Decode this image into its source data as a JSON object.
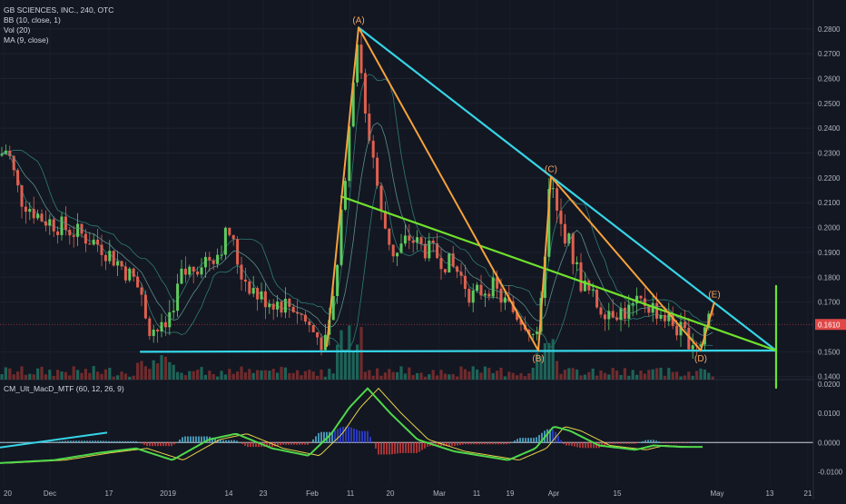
{
  "legend": {
    "symbol": "GB SCIENCES, INC., 240, OTC",
    "bb": "BB (10, close, 1)",
    "vol": "Vol (20)",
    "ma": "MA (9, close)"
  },
  "macd_legend": "CM_Ult_MacD_MTF (60, 12, 26, 9)",
  "colors": {
    "background": "#131722",
    "up": "#5ecb5e",
    "down": "#e0604f",
    "cyan": "#35d4e6",
    "orange": "#f7a23b",
    "green": "#6fe12c",
    "price_tag": "#e04848"
  },
  "chart_data": [
    {
      "type": "candlestick",
      "title": "",
      "price_axis": {
        "labels": [
          "0.2800",
          "0.2700",
          "0.2600",
          "0.2500",
          "0.2400",
          "0.2300",
          "0.2200",
          "0.2100",
          "0.2000",
          "0.1900",
          "0.1800",
          "0.1700",
          "0.1500",
          "0.1400"
        ],
        "values": [
          0.28,
          0.27,
          0.26,
          0.25,
          0.24,
          0.23,
          0.22,
          0.21,
          0.2,
          0.19,
          0.18,
          0.17,
          0.15,
          0.14
        ],
        "range": [
          0.1355,
          0.2865
        ]
      },
      "last_price_label": "0.1610",
      "last_price": 0.161,
      "x_axis": {
        "labels": [
          "20",
          "Dec",
          "17",
          "2019",
          "14",
          "23",
          "Feb",
          "11",
          "20",
          "Mar",
          "11",
          "19",
          "Apr",
          "15",
          "May",
          "13",
          "21"
        ],
        "positions": [
          4,
          55,
          120,
          185,
          252,
          290,
          344,
          386,
          430,
          484,
          525,
          562,
          610,
          680,
          790,
          848,
          890
        ]
      },
      "points": [
        {
          "label": "(A)",
          "x": 395,
          "price": 0.2805
        },
        {
          "label": "(B)",
          "x": 593,
          "price": 0.1505
        },
        {
          "label": "(C)",
          "x": 607,
          "price": 0.2205
        },
        {
          "label": "(D)",
          "x": 772,
          "price": 0.1505
        },
        {
          "label": "(E)",
          "x": 787,
          "price": 0.17
        }
      ],
      "trendlines": [
        {
          "name": "upper-resistance",
          "color": "cyan",
          "from": {
            "x": 395,
            "price": 0.2805
          },
          "to": {
            "x": 855,
            "price": 0.1505
          }
        },
        {
          "name": "base-support",
          "color": "cyan",
          "from": {
            "x": 155,
            "price": 0.15
          },
          "to": {
            "x": 855,
            "price": 0.1505
          }
        },
        {
          "name": "mid-trend",
          "color": "green",
          "from": {
            "x": 376,
            "price": 0.2125
          },
          "to": {
            "x": 855,
            "price": 0.1505
          }
        },
        {
          "name": "apex-vertical",
          "color": "green",
          "from": {
            "x": 855,
            "price": 0.1765
          },
          "to": {
            "x": 855,
            "price": 0.1355
          }
        }
      ],
      "wave_path": [
        {
          "x": 360,
          "price": 0.152
        },
        {
          "x": 395,
          "price": 0.2805
        },
        {
          "x": 593,
          "price": 0.1505
        },
        {
          "x": 607,
          "price": 0.2205
        },
        {
          "x": 772,
          "price": 0.1505
        },
        {
          "x": 787,
          "price": 0.17
        }
      ],
      "wave_path_color": "orange"
    },
    {
      "type": "line",
      "title": "",
      "y_axis": {
        "labels": [
          "0.0200",
          "0.0100",
          "0.0000",
          "-0.0100"
        ],
        "values": [
          0.02,
          0.01,
          0.0,
          -0.01
        ],
        "range": [
          -0.0148,
          0.0215
        ]
      },
      "zero_line": 0.0,
      "macd_trendline": {
        "from": {
          "x": 0,
          "value": -0.0017
        },
        "to": {
          "x": 118,
          "value": 0.0034
        }
      }
    }
  ]
}
